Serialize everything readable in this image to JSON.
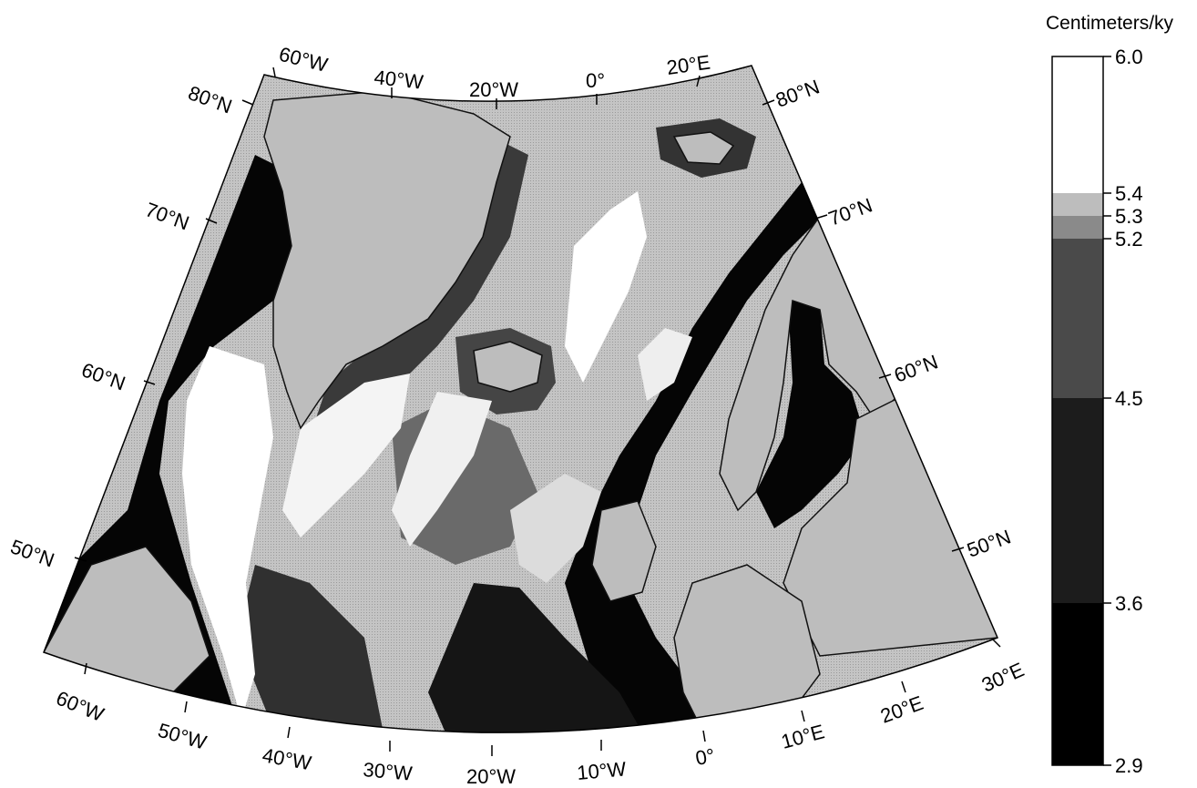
{
  "map": {
    "top_labels": [
      "60°W",
      "40°W",
      "20°W",
      "0°",
      "20°E"
    ],
    "bottom_labels": [
      "60°W",
      "50°W",
      "40°W",
      "30°W",
      "20°W",
      "10°W",
      "0°",
      "10°E",
      "20°E",
      "30°E"
    ],
    "left_lat_labels": [
      "80°N",
      "70°N",
      "60°N",
      "50°N"
    ],
    "right_lat_labels": [
      "80°N",
      "70°N",
      "60°N",
      "50°N"
    ],
    "colors": {
      "land": "#bdbdbd",
      "frame": "#000000"
    }
  },
  "colorbar": {
    "title": "Centimeters/ky",
    "ticks": [
      "6.0",
      "5.4",
      "5.3",
      "5.2",
      "4.5",
      "3.6",
      "2.9"
    ],
    "bins": [
      {
        "from": 2.9,
        "to": 3.6,
        "color": "#000000"
      },
      {
        "from": 3.6,
        "to": 4.5,
        "color": "#1c1c1c"
      },
      {
        "from": 4.5,
        "to": 5.2,
        "color": "#4a4a4a"
      },
      {
        "from": 5.2,
        "to": 5.3,
        "color": "#8a8a8a"
      },
      {
        "from": 5.3,
        "to": 5.4,
        "color": "#bdbdbd"
      },
      {
        "from": 5.4,
        "to": 6.0,
        "color": "#ffffff"
      }
    ]
  }
}
